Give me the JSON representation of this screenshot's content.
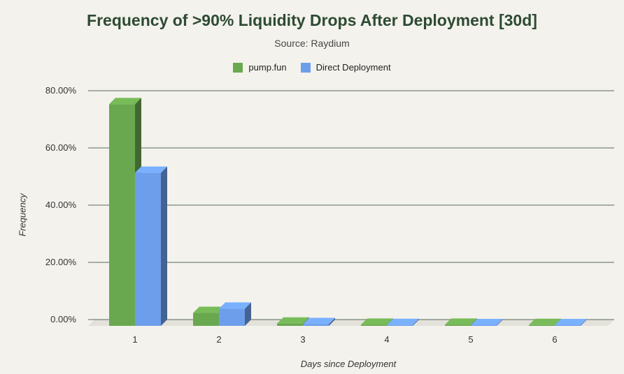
{
  "chart_data": {
    "type": "bar",
    "style": "3d-clustered-column",
    "title": "Frequency of >90% Liquidity Drops After Deployment [30d]",
    "subtitle": "Source: Raydium",
    "xlabel": "Days since Deployment",
    "ylabel": "Frequency",
    "categories": [
      "1",
      "2",
      "3",
      "4",
      "5",
      "6"
    ],
    "series": [
      {
        "name": "pump.fun",
        "color": "#6aa84f",
        "values": [
          77.5,
          4.5,
          0.8,
          0.4,
          0.4,
          0.3
        ]
      },
      {
        "name": "Direct Deployment",
        "color": "#6d9eeb",
        "values": [
          53.5,
          6.0,
          0.6,
          0.3,
          0.2,
          0.2
        ]
      }
    ],
    "yticks": [
      "0.00%",
      "20.00%",
      "40.00%",
      "60.00%",
      "80.00%"
    ],
    "ytick_values": [
      0,
      20,
      40,
      60,
      80
    ],
    "ylim": [
      0,
      80
    ],
    "grid": true,
    "legend_position": "top"
  }
}
